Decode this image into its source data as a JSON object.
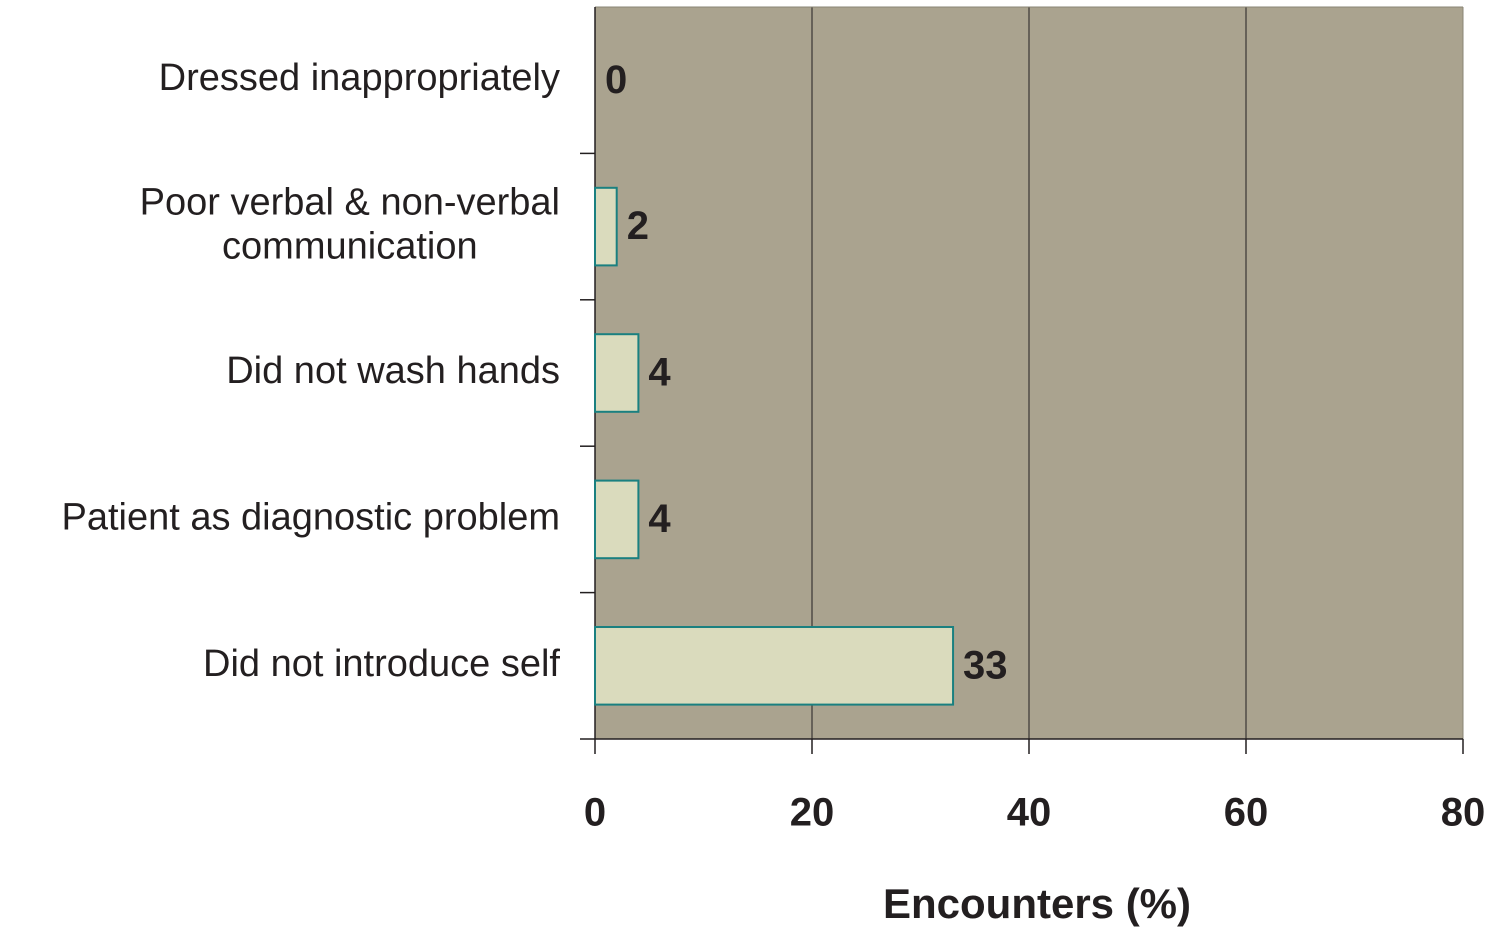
{
  "chart_data": {
    "type": "bar",
    "orientation": "horizontal",
    "categories": [
      "Dressed inappropriately",
      "Poor verbal & non-verbal\ncommunication",
      "Did not wash hands",
      "Patient as diagnostic problem",
      "Did not introduce self"
    ],
    "values": [
      0,
      2,
      4,
      4,
      33
    ],
    "xlabel": "Encounters (%)",
    "xlim": [
      0,
      80
    ],
    "xticks": [
      0,
      20,
      40,
      60,
      80
    ],
    "grid": true,
    "color": "#dadbbd",
    "edge_color": "#1a8080",
    "plot_background": "#aaa38f"
  }
}
